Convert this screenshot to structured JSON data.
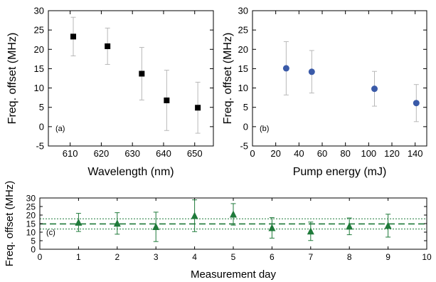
{
  "chart_data": [
    {
      "type": "scatter",
      "panel_label": "(a)",
      "xlabel": "Wavelength (nm)",
      "ylabel": "Freq. offset (MHz)",
      "xlim": [
        603,
        656
      ],
      "ylim": [
        -5,
        30
      ],
      "xticks": [
        610,
        620,
        630,
        640,
        650
      ],
      "yticks": [
        -5,
        0,
        5,
        10,
        15,
        20,
        25,
        30
      ],
      "marker": "square",
      "color": "#000000",
      "errorbar_color": "#b8b8b8",
      "points": [
        {
          "x": 611,
          "y": 23.3,
          "err": 5.0
        },
        {
          "x": 622,
          "y": 20.8,
          "err": 4.7
        },
        {
          "x": 633,
          "y": 13.7,
          "err": 6.8
        },
        {
          "x": 641,
          "y": 6.8,
          "err": 7.8
        },
        {
          "x": 651,
          "y": 4.9,
          "err": 6.6
        }
      ]
    },
    {
      "type": "scatter",
      "panel_label": "(b)",
      "xlabel": "Pump energy (mJ)",
      "ylabel": "Freq. offset (MHz)",
      "xlim": [
        0,
        150
      ],
      "ylim": [
        -5,
        30
      ],
      "xticks": [
        0,
        20,
        40,
        60,
        80,
        100,
        120,
        140
      ],
      "yticks": [
        -5,
        0,
        5,
        10,
        15,
        20,
        25,
        30
      ],
      "marker": "circle",
      "color": "#3a5aa8",
      "errorbar_color": "#b8b8b8",
      "points": [
        {
          "x": 29,
          "y": 15.1,
          "err": 6.9
        },
        {
          "x": 51,
          "y": 14.2,
          "err": 5.5
        },
        {
          "x": 105,
          "y": 9.8,
          "err": 4.5
        },
        {
          "x": 141,
          "y": 6.1,
          "err": 4.8
        }
      ]
    },
    {
      "type": "scatter",
      "panel_label": "(c)",
      "xlabel": "Measurement day",
      "ylabel": "Freq. offset (MHz)",
      "xlim": [
        0,
        10
      ],
      "ylim": [
        0,
        30
      ],
      "xticks": [
        0,
        1,
        2,
        3,
        4,
        5,
        6,
        7,
        8,
        9,
        10
      ],
      "yticks": [
        0,
        5,
        10,
        15,
        20,
        25,
        30
      ],
      "marker": "triangle",
      "color": "#1f7a3a",
      "errorbar_color": "#1f7a3a",
      "mean_line": 14.8,
      "band_lines": [
        11.8,
        17.8
      ],
      "points": [
        {
          "x": 1,
          "y": 15.7,
          "err": 5.3
        },
        {
          "x": 2,
          "y": 15.1,
          "err": 6.3
        },
        {
          "x": 3,
          "y": 13.1,
          "err": 8.6
        },
        {
          "x": 4,
          "y": 19.6,
          "err": 9.3
        },
        {
          "x": 5,
          "y": 20.4,
          "err": 6.3
        },
        {
          "x": 6,
          "y": 12.5,
          "err": 6.0
        },
        {
          "x": 7,
          "y": 10.5,
          "err": 5.4
        },
        {
          "x": 8,
          "y": 13.4,
          "err": 4.9
        },
        {
          "x": 9,
          "y": 13.8,
          "err": 6.7
        }
      ]
    }
  ]
}
